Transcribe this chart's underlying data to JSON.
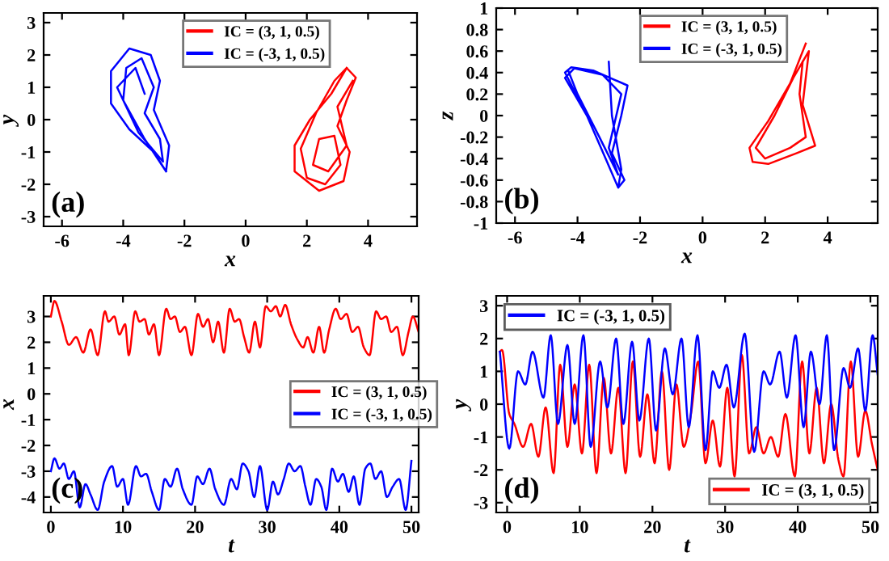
{
  "chart_data": [
    {
      "type": "line",
      "xlabel": "x",
      "ylabel": "y",
      "xlim": [
        -6.6,
        5.6
      ],
      "ylim": [
        -3.3,
        3.3
      ],
      "xticks": [
        -6,
        -4,
        -2,
        0,
        2,
        4
      ],
      "yticks": [
        -3,
        -2,
        -1,
        0,
        1,
        2,
        3
      ],
      "legend": "top",
      "annotations": [
        "(a)"
      ],
      "series": [
        {
          "name": "IC = (3, 1, 0.5)",
          "color": "#ff0000",
          "x": [
            3.3,
            2.8,
            2.1,
            1.6,
            1.6,
            2.4,
            3.2,
            3.4,
            3.0,
            3.3,
            3.6,
            3.3,
            2.9,
            2.3,
            1.8,
            2.0,
            2.6,
            3.1,
            2.9,
            2.4,
            2.2,
            2.7,
            3.3,
            3.0,
            3.5
          ],
          "values": [
            1.6,
            0.8,
            0.0,
            -0.8,
            -1.6,
            -2.2,
            -1.9,
            -1.0,
            -0.2,
            0.6,
            1.3,
            1.6,
            1.2,
            0.2,
            -0.9,
            -1.8,
            -2.0,
            -1.4,
            -0.5,
            -0.6,
            -1.4,
            -1.6,
            -0.8,
            0.4,
            1.2
          ]
        },
        {
          "name": "IC = (-3, 1, 0.5)",
          "color": "#0000ff",
          "x": [
            -2.6,
            -3.0,
            -3.8,
            -4.4,
            -4.4,
            -3.8,
            -3.1,
            -2.8,
            -3.0,
            -2.5,
            -2.6,
            -3.3,
            -4.0,
            -3.9,
            -3.4,
            -3.0,
            -3.3,
            -2.8,
            -2.7,
            -3.5,
            -4.2,
            -3.6,
            -3.3
          ],
          "values": [
            -1.6,
            -1.0,
            -0.3,
            0.5,
            1.5,
            2.2,
            2.0,
            1.2,
            0.3,
            -0.8,
            -1.6,
            -0.6,
            0.6,
            1.6,
            1.9,
            1.0,
            0.2,
            -0.6,
            -1.3,
            -0.4,
            1.0,
            1.6,
            0.8
          ]
        }
      ]
    },
    {
      "type": "line",
      "xlabel": "x",
      "ylabel": "z",
      "xlim": [
        -6.6,
        5.6
      ],
      "ylim": [
        -1,
        1
      ],
      "xticks": [
        -6,
        -4,
        -2,
        0,
        2,
        4
      ],
      "yticks": [
        -1,
        -0.8,
        -0.6,
        -0.4,
        -0.2,
        0,
        0.2,
        0.4,
        0.6,
        0.8,
        1
      ],
      "legend": "top",
      "annotations": [
        "(b)"
      ],
      "series": [
        {
          "name": "IC = (3, 1, 0.5)",
          "color": "#ff0000",
          "x": [
            3.3,
            2.8,
            2.1,
            1.5,
            1.6,
            2.1,
            3.0,
            3.6,
            3.2,
            3.4,
            2.9,
            2.3,
            1.7,
            2.0,
            2.8,
            3.3,
            3.1,
            3.2
          ],
          "values": [
            0.67,
            0.3,
            -0.05,
            -0.3,
            -0.43,
            -0.45,
            -0.35,
            -0.28,
            0.1,
            0.6,
            0.35,
            0.0,
            -0.3,
            -0.4,
            -0.3,
            -0.2,
            0.2,
            0.5
          ]
        },
        {
          "name": "IC = (-3, 1, 0.5)",
          "color": "#0000ff",
          "x": [
            -3.0,
            -2.9,
            -2.6,
            -2.7,
            -3.1,
            -3.7,
            -4.4,
            -4.2,
            -3.5,
            -2.4,
            -2.6,
            -2.9,
            -2.5,
            -2.7,
            -3.1,
            -3.7,
            -4.4,
            -4.1,
            -3.2,
            -2.6,
            -3.0,
            -2.7,
            -3.3,
            -4.0,
            -4.3
          ],
          "values": [
            0.5,
            0.0,
            -0.5,
            -0.67,
            -0.4,
            0.0,
            0.4,
            0.45,
            0.42,
            0.28,
            0.0,
            -0.35,
            -0.6,
            -0.67,
            -0.4,
            0.0,
            0.35,
            0.44,
            0.38,
            0.2,
            -0.3,
            -0.55,
            -0.2,
            0.2,
            0.42
          ]
        }
      ]
    },
    {
      "type": "line",
      "xlabel": "t",
      "ylabel": "x",
      "xlim": [
        -1,
        51
      ],
      "ylim": [
        -4.6,
        3.8
      ],
      "xticks": [
        0,
        10,
        20,
        30,
        40,
        50
      ],
      "yticks": [
        -4,
        -3,
        -2,
        -1,
        0,
        1,
        2,
        3
      ],
      "legend": "right",
      "annotations": [
        "(c)"
      ],
      "series": [
        {
          "name": "IC = (3, 1, 0.5)",
          "color": "#ff0000",
          "x": [
            0,
            0.5,
            1.5,
            2.5,
            3.5,
            4.5,
            5.5,
            6.5,
            7.5,
            8,
            8.8,
            9.5,
            10.3,
            10.8,
            11.7,
            12.3,
            13,
            13.6,
            14.3,
            15,
            16,
            16.6,
            17.2,
            17.9,
            18.6,
            19.5,
            20.4,
            21.1,
            21.8,
            22.5,
            23.2,
            24,
            24.8,
            25.5,
            26.1,
            26.8,
            27.5,
            28.3,
            29,
            29.8,
            30.5,
            31.2,
            31.8,
            32.5,
            33.3,
            34.2,
            35,
            35.6,
            36.4,
            37.2,
            37.9,
            38.6,
            39.5,
            40.2,
            41,
            41.8,
            42.6,
            43.4,
            44.2,
            45.1,
            45.8,
            46.5,
            47.2,
            48,
            48.8,
            49.6,
            50.2,
            51
          ],
          "values": [
            3.0,
            3.6,
            2.8,
            1.9,
            2.2,
            1.6,
            2.5,
            1.5,
            3.2,
            2.8,
            3.0,
            2.3,
            2.7,
            1.5,
            3.2,
            2.8,
            2.9,
            2.3,
            2.7,
            1.5,
            3.3,
            2.9,
            3.0,
            2.4,
            2.6,
            1.5,
            3.1,
            2.6,
            2.9,
            2.0,
            2.8,
            1.6,
            3.3,
            2.8,
            2.9,
            2.2,
            1.6,
            2.8,
            1.8,
            3.4,
            3.2,
            3.4,
            3.0,
            3.45,
            2.7,
            2.1,
            1.8,
            2.2,
            1.6,
            2.6,
            1.6,
            2.5,
            3.3,
            2.9,
            3.1,
            2.4,
            2.6,
            1.8,
            1.5,
            3.2,
            2.9,
            3.0,
            2.4,
            2.6,
            1.5,
            2.4,
            3.0,
            2.4
          ]
        },
        {
          "name": "IC = (-3, 1, 0.5)",
          "color": "#0000ff",
          "x": [
            0,
            0.5,
            1.2,
            1.8,
            2.5,
            3.2,
            4,
            4.8,
            5.5,
            6.5,
            7.4,
            8.5,
            9.2,
            10,
            10.7,
            11.8,
            12.5,
            13.2,
            14,
            15,
            15.8,
            16.6,
            17.5,
            18.3,
            19.5,
            20.3,
            21.1,
            22,
            22.8,
            24,
            25,
            25.8,
            26.6,
            27.4,
            28.2,
            29,
            30,
            30.8,
            31.5,
            32.3,
            33,
            33.8,
            34.6,
            35.3,
            36,
            36.8,
            37.5,
            38.2,
            39,
            39.8,
            40.5,
            41.3,
            42,
            42.8,
            43.6,
            44.3,
            45,
            45.8,
            46.6,
            47.4,
            48.3,
            49.2,
            50
          ],
          "values": [
            -3.0,
            -2.5,
            -2.9,
            -2.7,
            -3.3,
            -3.0,
            -4.4,
            -3.5,
            -3.9,
            -4.5,
            -3.4,
            -2.8,
            -3.6,
            -3.3,
            -4.3,
            -2.8,
            -3.2,
            -3.1,
            -3.8,
            -4.5,
            -3.3,
            -3.6,
            -2.9,
            -3.7,
            -4.3,
            -3.2,
            -3.5,
            -2.9,
            -3.7,
            -4.3,
            -3.3,
            -3.7,
            -2.7,
            -3.0,
            -4.0,
            -2.8,
            -4.5,
            -3.4,
            -3.9,
            -3.3,
            -2.7,
            -3.0,
            -2.8,
            -3.6,
            -4.3,
            -3.3,
            -3.6,
            -4.5,
            -2.9,
            -3.4,
            -3.1,
            -3.8,
            -3.2,
            -4.3,
            -2.9,
            -2.7,
            -3.3,
            -3.0,
            -4.0,
            -3.6,
            -3.3,
            -4.5,
            -2.6
          ]
        }
      ]
    },
    {
      "type": "line",
      "xlabel": "t",
      "ylabel": "y",
      "xlim": [
        -1.5,
        51
      ],
      "ylim": [
        -3.3,
        3.3
      ],
      "xticks": [
        0,
        10,
        20,
        30,
        40,
        50
      ],
      "yticks": [
        -3,
        -2,
        -1,
        0,
        1,
        2,
        3
      ],
      "legend": [
        "bottom right",
        "top left"
      ],
      "annotations": [
        "(d)"
      ],
      "series": [
        {
          "name": "IC = (3, 1, 0.5)",
          "color": "#ff0000",
          "x": [
            -1,
            -0.7,
            0.3,
            1,
            2.2,
            3.3,
            4.3,
            5.3,
            6.4,
            7.3,
            8.3,
            9.3,
            10.3,
            11.3,
            12.3,
            13.3,
            14.3,
            15.3,
            16.3,
            17.3,
            18.3,
            19.3,
            20.3,
            21.3,
            22.3,
            23.3,
            24.3,
            25.3,
            26.3,
            27.3,
            28.3,
            29.3,
            30.3,
            31.3,
            32.3,
            33.3,
            34.3,
            35.3,
            36.3,
            37.3,
            38.3,
            39.6,
            40.6,
            41.6,
            42.6,
            43.6,
            44.6,
            45.6,
            46.3,
            47.3,
            48.3,
            49.3,
            50.2,
            51
          ],
          "values": [
            1.6,
            1.65,
            -0.3,
            -0.6,
            -1.3,
            -0.6,
            -1.6,
            -0.1,
            -2.1,
            1.2,
            -1.3,
            0.6,
            -1.5,
            1.2,
            -2.1,
            0.8,
            -1.5,
            0.5,
            -2.1,
            1.3,
            -1.6,
            0.3,
            -1.8,
            1.0,
            -2.0,
            0.6,
            -1.3,
            -0.3,
            1.3,
            -1.8,
            -0.5,
            -1.9,
            0.5,
            -2.2,
            1.5,
            -1.5,
            -0.7,
            -1.5,
            -1.0,
            -1.6,
            -0.3,
            -2.2,
            1.3,
            -1.5,
            0.5,
            -1.8,
            0.0,
            -1.7,
            -2.2,
            1.3,
            -1.6,
            -0.2,
            -1.2,
            -2.0
          ]
        },
        {
          "name": "IC = (-3, 1, 0.5)",
          "color": "#0000ff",
          "x": [
            -1,
            0.3,
            1.5,
            2.5,
            3.5,
            5,
            6,
            7,
            8.3,
            9.3,
            10.5,
            11.5,
            12.8,
            13.8,
            15,
            16,
            17.2,
            18.2,
            19.5,
            20.5,
            21.7,
            22.8,
            24,
            25,
            26.2,
            27.3,
            28.3,
            29.2,
            30.2,
            31.2,
            32.7,
            34,
            35.3,
            36.2,
            37.5,
            38.5,
            39.7,
            40.8,
            41.8,
            43,
            44,
            45,
            46.3,
            47.2,
            48.3,
            49.3,
            50.3,
            51
          ],
          "values": [
            1.6,
            -1.35,
            1.0,
            0.6,
            1.6,
            0.2,
            2.1,
            -0.6,
            1.8,
            -0.6,
            2.1,
            -1.3,
            1.3,
            -0.1,
            2.0,
            -0.6,
            1.9,
            -0.5,
            2.0,
            -0.8,
            1.7,
            0.3,
            2.0,
            -0.7,
            2.1,
            -1.4,
            1.0,
            0.5,
            1.2,
            -0.1,
            2.15,
            -1.45,
            1.0,
            0.6,
            1.6,
            0.2,
            2.1,
            -0.7,
            1.6,
            0.0,
            2.1,
            -1.4,
            1.1,
            0.5,
            1.7,
            -0.2,
            2.1,
            0.9
          ]
        }
      ]
    }
  ]
}
